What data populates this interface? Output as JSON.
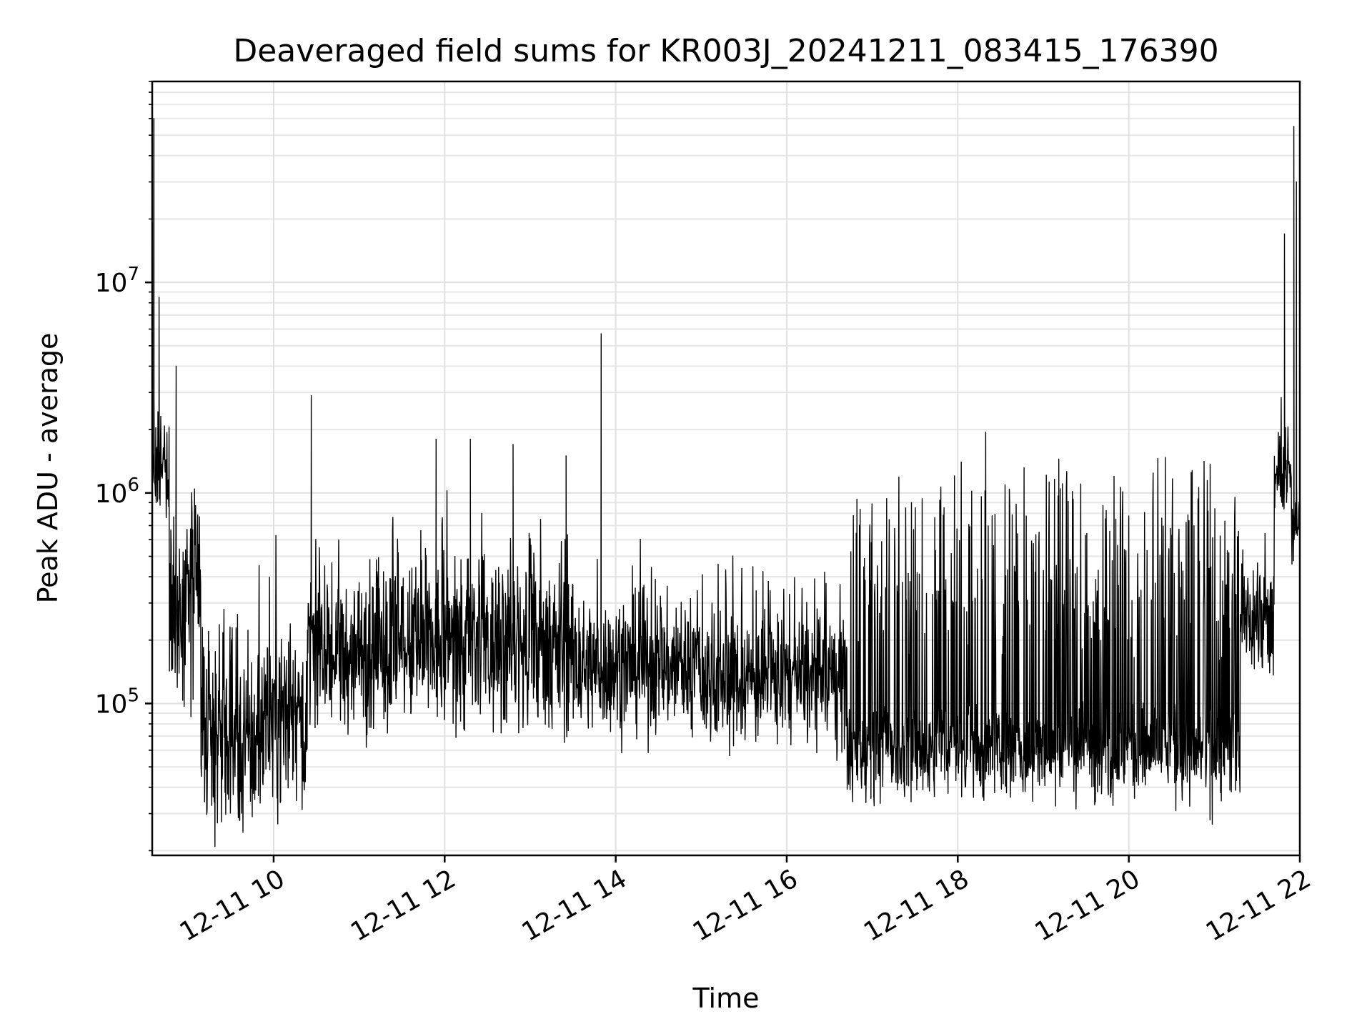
{
  "chart_data": {
    "type": "line",
    "title": "Deaveraged field sums for KR003J_20241211_083415_176390",
    "xlabel": "Time",
    "ylabel": "Peak ADU - average",
    "x_ticks": [
      "12-11 10",
      "12-11 12",
      "12-11 14",
      "12-11 16",
      "12-11 18",
      "12-11 20",
      "12-11 22"
    ],
    "x_tick_hours": [
      10,
      12,
      14,
      16,
      18,
      20,
      22
    ],
    "xlim_hours": [
      8.58,
      22.0
    ],
    "y_scale": "log",
    "ylim": [
      19000,
      90000000
    ],
    "y_ticks": [
      {
        "value": 100000,
        "base": "10",
        "exp": "5"
      },
      {
        "value": 1000000,
        "base": "10",
        "exp": "6"
      },
      {
        "value": 10000000,
        "base": "10",
        "exp": "7"
      }
    ],
    "grid": true,
    "series": [
      {
        "color": "#000000",
        "segments": [
          {
            "x": [
              8.58,
              8.78
            ],
            "base": 1300000,
            "spread": 0.18,
            "spike_rate": 0.15,
            "spike_mult": 1.6
          },
          {
            "x": [
              8.78,
              9.15
            ],
            "base": 300000,
            "spread": 0.35,
            "spike_rate": 0.1,
            "spike_mult": 2.5
          },
          {
            "x": [
              9.15,
              9.85
            ],
            "base": 65000,
            "spread": 0.3,
            "spike_rate": 0.08,
            "spike_mult": 4
          },
          {
            "x": [
              9.85,
              10.4
            ],
            "base": 90000,
            "spread": 0.3,
            "spike_rate": 0.08,
            "spike_mult": 3.5
          },
          {
            "x": [
              10.4,
              11.5
            ],
            "base": 170000,
            "spread": 0.27,
            "spike_rate": 0.09,
            "spike_mult": 3
          },
          {
            "x": [
              11.5,
              13.5
            ],
            "base": 180000,
            "spread": 0.28,
            "spike_rate": 0.1,
            "spike_mult": 3
          },
          {
            "x": [
              13.5,
              15.0
            ],
            "base": 150000,
            "spread": 0.22,
            "spike_rate": 0.07,
            "spike_mult": 2.8
          },
          {
            "x": [
              15.0,
              16.7
            ],
            "base": 130000,
            "spread": 0.22,
            "spike_rate": 0.07,
            "spike_mult": 2.8
          },
          {
            "x": [
              16.7,
              21.3
            ],
            "base": 60000,
            "spread": 0.16,
            "spike_rate": 0.25,
            "spike_mult": 18
          },
          {
            "x": [
              21.3,
              21.7
            ],
            "base": 250000,
            "spread": 0.2,
            "spike_rate": 0.1,
            "spike_mult": 2
          },
          {
            "x": [
              21.7,
              21.9
            ],
            "base": 1100000,
            "spread": 0.12,
            "spike_rate": 0.2,
            "spike_mult": 1.8
          },
          {
            "x": [
              21.9,
              22.0
            ],
            "base": 700000,
            "spread": 0.12,
            "spike_rate": 0.05,
            "spike_mult": 1.5
          }
        ],
        "peaks": [
          {
            "x": 8.6,
            "y": 60000000
          },
          {
            "x": 8.66,
            "y": 8500000
          },
          {
            "x": 8.86,
            "y": 4000000
          },
          {
            "x": 10.44,
            "y": 2900000
          },
          {
            "x": 11.9,
            "y": 1800000
          },
          {
            "x": 12.3,
            "y": 1800000
          },
          {
            "x": 12.8,
            "y": 1700000
          },
          {
            "x": 13.42,
            "y": 1500000
          },
          {
            "x": 13.83,
            "y": 5700000
          },
          {
            "x": 21.82,
            "y": 17000000
          },
          {
            "x": 21.93,
            "y": 55000000
          },
          {
            "x": 21.96,
            "y": 30000000
          }
        ],
        "dips": [
          {
            "x": 9.6,
            "y": 28000
          },
          {
            "x": 9.75,
            "y": 29000
          },
          {
            "x": 20.95,
            "y": 28000
          },
          {
            "x": 20.55,
            "y": 31000
          }
        ]
      }
    ]
  }
}
